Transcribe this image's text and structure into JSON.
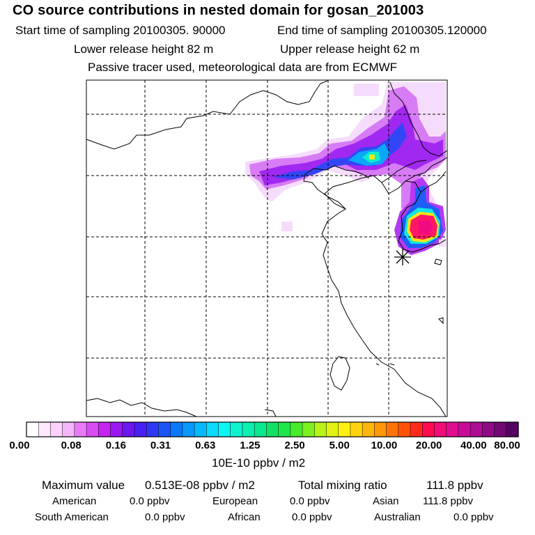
{
  "header": {
    "title": "CO  source contributions in nested domain for gosan_201003",
    "start_label": "Start time of sampling 20100305. 90000",
    "end_label": "End time of sampling 20100305.120000",
    "lower_label": "Lower release height   82 m",
    "upper_label": "Upper release height   62 m",
    "note": "Passive tracer used, meteorological data are from ECMWF"
  },
  "colorbar": {
    "ticks": [
      "0.00",
      "0.08",
      "0.16",
      "0.31",
      "0.63",
      "1.25",
      "2.50",
      "5.00",
      "10.00",
      "20.00",
      "40.00",
      "80.00"
    ],
    "units": "10E-10 ppbv / m2",
    "colors": [
      "#ffffff",
      "#fde8fe",
      "#fad2fc",
      "#f5b6fb",
      "#e97af6",
      "#d94cf2",
      "#c425f0",
      "#9a18f0",
      "#6c16f0",
      "#4a20f2",
      "#2f38f5",
      "#1c55f7",
      "#0b78f9",
      "#0898fb",
      "#06b8fc",
      "#0bd9fd",
      "#10f5f1",
      "#0ff2d0",
      "#0cefb1",
      "#0ae88f",
      "#14e066",
      "#20e64a",
      "#46ec2c",
      "#7ef020",
      "#b7f219",
      "#e2f214",
      "#fff012",
      "#ffd40f",
      "#ffb60c",
      "#ff970a",
      "#ff7408",
      "#ff5206",
      "#ff2a1e",
      "#ff0c50",
      "#f30d78",
      "#e10d90",
      "#c80c98",
      "#ad0b93",
      "#900a86",
      "#730775",
      "#560463"
    ]
  },
  "stats": {
    "max_label": "Maximum value",
    "max_value": "0.513E-08 ppbv / m2",
    "total_label": "Total mixing ratio",
    "total_value": "111.8 ppbv",
    "regions": [
      {
        "name": "American",
        "value": "0.0 ppbv"
      },
      {
        "name": "European",
        "value": "0.0 ppbv"
      },
      {
        "name": "Asian",
        "value": "111.8 ppbv"
      },
      {
        "name": "South American",
        "value": "0.0 ppbv"
      },
      {
        "name": "African",
        "value": "0.0 ppbv"
      },
      {
        "name": "Australian",
        "value": "0.0 ppbv"
      }
    ]
  },
  "map": {
    "receptor_marker": "asterisk",
    "plume_colors": [
      "#f3c8fb",
      "#e49af7",
      "#c74af2",
      "#9520f1",
      "#5a1ef3",
      "#2a46f6",
      "#0c84fa",
      "#0ac8fc",
      "#10f0d8",
      "#ffea10",
      "#ff1e6a",
      "#f01882"
    ]
  }
}
